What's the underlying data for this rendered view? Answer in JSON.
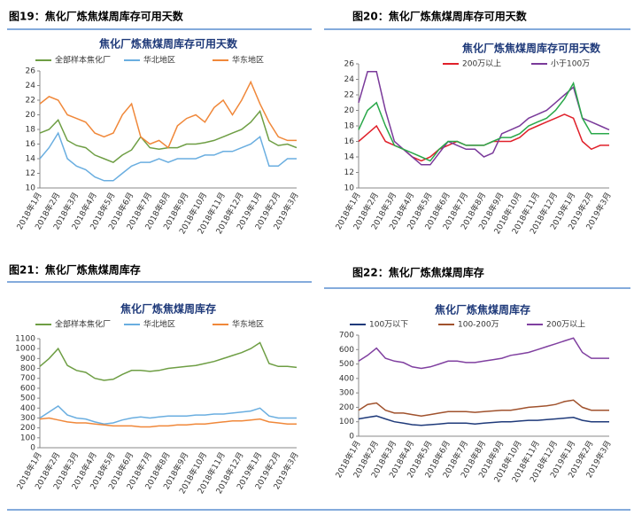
{
  "chart_data": [
    {
      "type": "line",
      "figure_title": "图19：焦化厂炼焦煤周库存可用天数",
      "title": "焦化厂炼焦煤周库存可用天数",
      "categories": [
        "2018年1月",
        null,
        "2018年2月",
        null,
        "2018年3月",
        null,
        "2018年4月",
        null,
        "2018年5月",
        null,
        "2018年6月",
        null,
        "2018年7月",
        null,
        "2018年8月",
        null,
        "2018年9月",
        null,
        "2018年10月",
        null,
        "2018年11月",
        null,
        "2018年12月",
        null,
        "2019年1月",
        null,
        "2019年2月",
        null,
        "2019年3月"
      ],
      "ylim": [
        10,
        26
      ],
      "yticks": [
        10,
        12,
        14,
        16,
        18,
        20,
        22,
        24,
        26
      ],
      "series": [
        {
          "name": "全部样本焦化厂",
          "color": "#6e9e44",
          "values": [
            17.5,
            18,
            19.3,
            16.5,
            15.8,
            15.5,
            14.5,
            14,
            13.5,
            14.5,
            15.2,
            17,
            15.5,
            15.3,
            15.5,
            15.5,
            16,
            16,
            16.2,
            16.5,
            17,
            17.5,
            18,
            19,
            20.5,
            16.5,
            15.8,
            16,
            15.5
          ]
        },
        {
          "name": "华北地区",
          "color": "#6aaee0",
          "values": [
            14,
            15.5,
            17.5,
            14,
            13,
            12.5,
            11.5,
            11,
            11,
            12,
            13,
            13.5,
            13.5,
            14,
            13.5,
            14,
            14,
            14,
            14.5,
            14.5,
            15,
            15,
            15.5,
            16,
            17,
            13,
            13,
            14,
            14
          ]
        },
        {
          "name": "华东地区",
          "color": "#f0883a",
          "values": [
            21.5,
            22.5,
            22,
            20,
            19.5,
            19,
            17.5,
            17,
            17.5,
            20,
            21.5,
            17,
            16,
            16.5,
            15.5,
            18.5,
            19.5,
            20,
            19,
            21,
            22,
            20,
            22,
            24.5,
            21.5,
            19,
            17,
            16.5,
            16.5
          ]
        }
      ]
    },
    {
      "type": "line",
      "figure_title": "图20：焦化厂炼焦煤周库存可用天数",
      "title": "焦化厂炼焦煤周库存可用天数",
      "categories": [
        "2018年1月",
        null,
        "2018年2月",
        null,
        "2018年3月",
        null,
        "2018年4月",
        null,
        "2018年5月",
        null,
        "2018年6月",
        null,
        "2018年7月",
        null,
        "2018年8月",
        null,
        "2018年9月",
        null,
        "2018年10月",
        null,
        "2018年11月",
        null,
        "2018年12月",
        null,
        "2019年1月",
        null,
        "2019年2月",
        null,
        "2019年3月"
      ],
      "ylim": [
        10,
        26
      ],
      "yticks": [
        10,
        12,
        14,
        16,
        18,
        20,
        22,
        24,
        26
      ],
      "series": [
        {
          "name": "200万以上",
          "color": "#e0202a",
          "values": [
            16,
            17,
            18,
            16,
            15.5,
            15,
            14,
            13.5,
            14,
            15,
            15.5,
            16,
            15.5,
            15.5,
            15.5,
            16,
            16,
            16,
            16.5,
            17.5,
            18,
            18.5,
            19,
            19.5,
            19,
            16,
            15,
            15.5,
            15.5
          ]
        },
        {
          "name": "小于100万",
          "color": "#7a3a9a",
          "values": [
            21,
            25,
            25,
            20,
            16,
            15,
            14,
            13,
            13,
            14.5,
            16,
            15.5,
            15,
            15,
            14,
            14.5,
            17,
            17.5,
            18,
            19,
            19.5,
            20,
            21,
            22,
            23,
            19,
            18.5,
            18,
            17.5
          ]
        },
        {
          "color": "#2aa84a",
          "values": [
            17.5,
            20,
            21,
            18,
            15.5,
            15,
            14.5,
            14,
            13.5,
            15,
            16,
            16,
            15.5,
            15.5,
            15.5,
            16,
            16.5,
            16.5,
            17,
            18,
            18.5,
            19,
            20,
            21.5,
            23.5,
            19,
            17,
            17,
            17
          ]
        }
      ]
    },
    {
      "type": "line",
      "figure_title": "图21：焦化厂炼焦煤周库存",
      "title": "焦化厂炼焦煤周库存",
      "categories": [
        "2018年1月",
        null,
        "2018年2月",
        null,
        "2018年3月",
        null,
        "2018年4月",
        null,
        "2018年5月",
        null,
        "2018年6月",
        null,
        "2018年7月",
        null,
        "2018年8月",
        null,
        "2018年9月",
        null,
        "2018年10月",
        null,
        "2018年11月",
        null,
        "2018年12月",
        null,
        "2019年1月",
        null,
        "2019年2月",
        null,
        "2019年3月"
      ],
      "ylim": [
        0,
        1100
      ],
      "yticks": [
        0,
        100,
        200,
        300,
        400,
        500,
        600,
        700,
        800,
        900,
        1000,
        1100
      ],
      "series": [
        {
          "name": "全部样本焦化厂",
          "color": "#6e9e44",
          "values": [
            820,
            900,
            1000,
            830,
            780,
            760,
            700,
            680,
            690,
            740,
            780,
            780,
            770,
            780,
            800,
            810,
            820,
            830,
            850,
            870,
            900,
            930,
            960,
            1000,
            1060,
            850,
            820,
            820,
            810
          ]
        },
        {
          "name": "华北地区",
          "color": "#6aaee0",
          "values": [
            300,
            360,
            420,
            330,
            300,
            290,
            260,
            240,
            250,
            280,
            300,
            310,
            300,
            310,
            320,
            320,
            320,
            330,
            330,
            340,
            340,
            350,
            360,
            370,
            400,
            320,
            300,
            300,
            300
          ]
        },
        {
          "name": "华东地区",
          "color": "#f0883a",
          "values": [
            290,
            300,
            280,
            260,
            250,
            250,
            240,
            230,
            220,
            220,
            220,
            210,
            210,
            220,
            220,
            230,
            230,
            240,
            240,
            250,
            260,
            270,
            270,
            280,
            290,
            260,
            250,
            240,
            240
          ]
        }
      ]
    },
    {
      "type": "line",
      "figure_title": "图22：焦化厂炼焦煤周库存",
      "title": "焦化厂炼焦煤周库存",
      "categories": [
        "2018年1月",
        null,
        "2018年2月",
        null,
        "2018年3月",
        null,
        "2018年4月",
        null,
        "2018年5月",
        null,
        "2018年6月",
        null,
        "2018年7月",
        null,
        "2018年8月",
        null,
        "2018年9月",
        null,
        "2018年10月",
        null,
        "2018年11月",
        null,
        "2018年12月",
        null,
        "2019年1月",
        null,
        "2019年2月",
        null,
        "2019年3月"
      ],
      "ylim": [
        0,
        700
      ],
      "yticks": [
        0,
        100,
        200,
        300,
        400,
        500,
        600,
        700
      ],
      "series": [
        {
          "name": "100万以下",
          "color": "#1f3a7a",
          "values": [
            120,
            130,
            140,
            120,
            100,
            90,
            80,
            75,
            80,
            85,
            90,
            90,
            90,
            85,
            90,
            95,
            100,
            100,
            105,
            110,
            110,
            115,
            120,
            125,
            130,
            110,
            100,
            100,
            100
          ]
        },
        {
          "name": "100-200万",
          "color": "#a0522d",
          "values": [
            180,
            220,
            230,
            180,
            160,
            160,
            150,
            140,
            150,
            160,
            170,
            170,
            170,
            165,
            170,
            175,
            180,
            180,
            190,
            200,
            205,
            210,
            220,
            240,
            250,
            200,
            180,
            180,
            180
          ]
        },
        {
          "name": "200万以上",
          "color": "#8040a0",
          "values": [
            520,
            560,
            610,
            540,
            520,
            510,
            480,
            470,
            480,
            500,
            520,
            520,
            510,
            510,
            520,
            530,
            540,
            560,
            570,
            580,
            600,
            620,
            640,
            660,
            680,
            580,
            540,
            540,
            540
          ]
        }
      ]
    }
  ]
}
